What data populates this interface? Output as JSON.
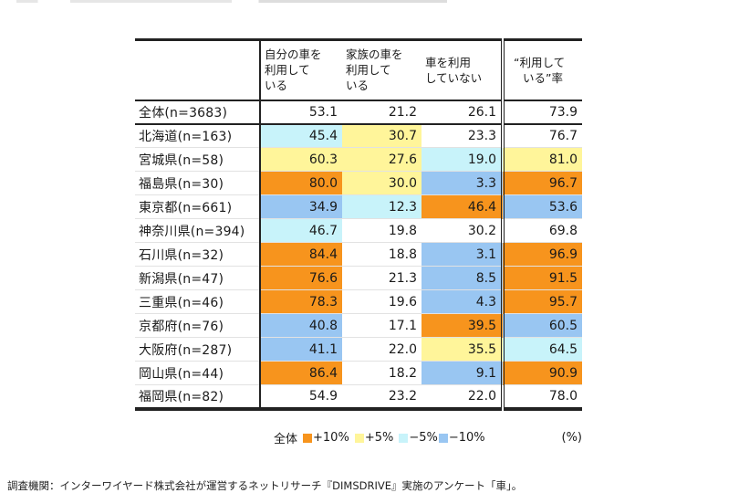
{
  "colors": {
    "plus10": "#f7941d",
    "plus5": "#fff59a",
    "minus5": "#c8f3fa",
    "minus10": "#99c6f2",
    "none": "#ffffff"
  },
  "table": {
    "headers": [
      "",
      "自分の車を利用している",
      "家族の車を利用している",
      "車を利用していない",
      "“利用している”率"
    ],
    "header_lines": [
      [],
      [
        "自分の車を",
        "利用して",
        "いる"
      ],
      [
        "家族の車を",
        "利用して",
        "いる"
      ],
      [
        "車を利用",
        "していない"
      ],
      [
        "“利用して",
        "いる”率"
      ]
    ],
    "rows": [
      {
        "label": "全体(n=3683)",
        "values": [
          "53.1",
          "21.2",
          "26.1",
          "73.9"
        ],
        "highlight": [
          "none",
          "none",
          "none",
          "none"
        ]
      },
      {
        "label": "北海道(n=163)",
        "values": [
          "45.4",
          "30.7",
          "23.3",
          "76.7"
        ],
        "highlight": [
          "minus5",
          "plus5",
          "none",
          "none"
        ]
      },
      {
        "label": "宮城県(n=58)",
        "values": [
          "60.3",
          "27.6",
          "19.0",
          "81.0"
        ],
        "highlight": [
          "plus5",
          "plus5",
          "minus5",
          "plus5"
        ]
      },
      {
        "label": "福島県(n=30)",
        "values": [
          "80.0",
          "30.0",
          "3.3",
          "96.7"
        ],
        "highlight": [
          "plus10",
          "plus5",
          "minus10",
          "plus10"
        ]
      },
      {
        "label": "東京都(n=661)",
        "values": [
          "34.9",
          "12.3",
          "46.4",
          "53.6"
        ],
        "highlight": [
          "minus10",
          "minus5",
          "plus10",
          "minus10"
        ]
      },
      {
        "label": "神奈川県(n=394)",
        "values": [
          "46.7",
          "19.8",
          "30.2",
          "69.8"
        ],
        "highlight": [
          "minus5",
          "none",
          "none",
          "none"
        ]
      },
      {
        "label": "石川県(n=32)",
        "values": [
          "84.4",
          "18.8",
          "3.1",
          "96.9"
        ],
        "highlight": [
          "plus10",
          "none",
          "minus10",
          "plus10"
        ]
      },
      {
        "label": "新潟県(n=47)",
        "values": [
          "76.6",
          "21.3",
          "8.5",
          "91.5"
        ],
        "highlight": [
          "plus10",
          "none",
          "minus10",
          "plus10"
        ]
      },
      {
        "label": "三重県(n=46)",
        "values": [
          "78.3",
          "19.6",
          "4.3",
          "95.7"
        ],
        "highlight": [
          "plus10",
          "none",
          "minus10",
          "plus10"
        ]
      },
      {
        "label": "京都府(n=76)",
        "values": [
          "40.8",
          "17.1",
          "39.5",
          "60.5"
        ],
        "highlight": [
          "minus10",
          "none",
          "plus10",
          "minus10"
        ]
      },
      {
        "label": "大阪府(n=287)",
        "values": [
          "41.1",
          "22.0",
          "35.5",
          "64.5"
        ],
        "highlight": [
          "minus10",
          "none",
          "plus5",
          "minus5"
        ]
      },
      {
        "label": "岡山県(n=44)",
        "values": [
          "86.4",
          "18.2",
          "9.1",
          "90.9"
        ],
        "highlight": [
          "plus10",
          "none",
          "minus10",
          "plus10"
        ]
      },
      {
        "label": "福岡県(n=82)",
        "values": [
          "54.9",
          "23.2",
          "22.0",
          "78.0"
        ],
        "highlight": [
          "none",
          "none",
          "none",
          "none"
        ]
      }
    ]
  },
  "legend": {
    "prefix": "全体",
    "items": [
      {
        "label": "+10%",
        "color_key": "plus10"
      },
      {
        "label": "+5%",
        "color_key": "plus5"
      },
      {
        "label": "−5%",
        "color_key": "minus5"
      },
      {
        "label": "−10%",
        "color_key": "minus10"
      }
    ],
    "unit": "(%)"
  },
  "source": "調査機関：インターワイヤード株式会社が運営するネットリサーチ『DIMSDRIVE』実施のアンケート「車」。"
}
